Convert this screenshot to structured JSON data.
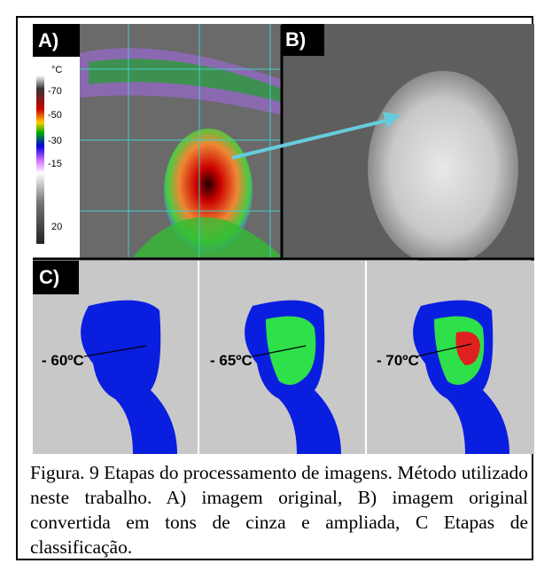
{
  "panels": {
    "a": {
      "label": "A)",
      "scale_unit": "°C",
      "scale_labels": [
        "-70",
        "-50",
        "-30",
        "-15",
        "20"
      ]
    },
    "b": {
      "label": "B)"
    },
    "c": {
      "label": "C)",
      "steps": [
        "- 60ºC",
        "- 65ºC",
        "- 70ºC"
      ]
    }
  },
  "caption": "Figura. 9 Etapas do processamento de imagens. Método utilizado neste trabalho. A) imagem original, B) imagem original convertida em tons de cinza e ampliada, C Etapas de classificação."
}
